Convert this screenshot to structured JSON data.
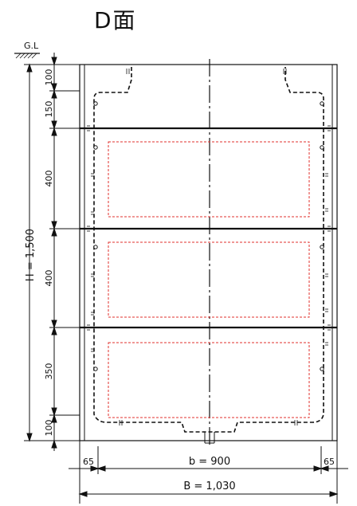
{
  "title": "D面",
  "ground_label": "G.L",
  "height_total": "H = 1,500",
  "height_segments": [
    "100",
    "150",
    "400",
    "400",
    "350",
    "100"
  ],
  "inner_width": "b = 900",
  "total_width": "B = 1,030",
  "side_left": "65",
  "side_right": "65",
  "marker_text": "II"
}
